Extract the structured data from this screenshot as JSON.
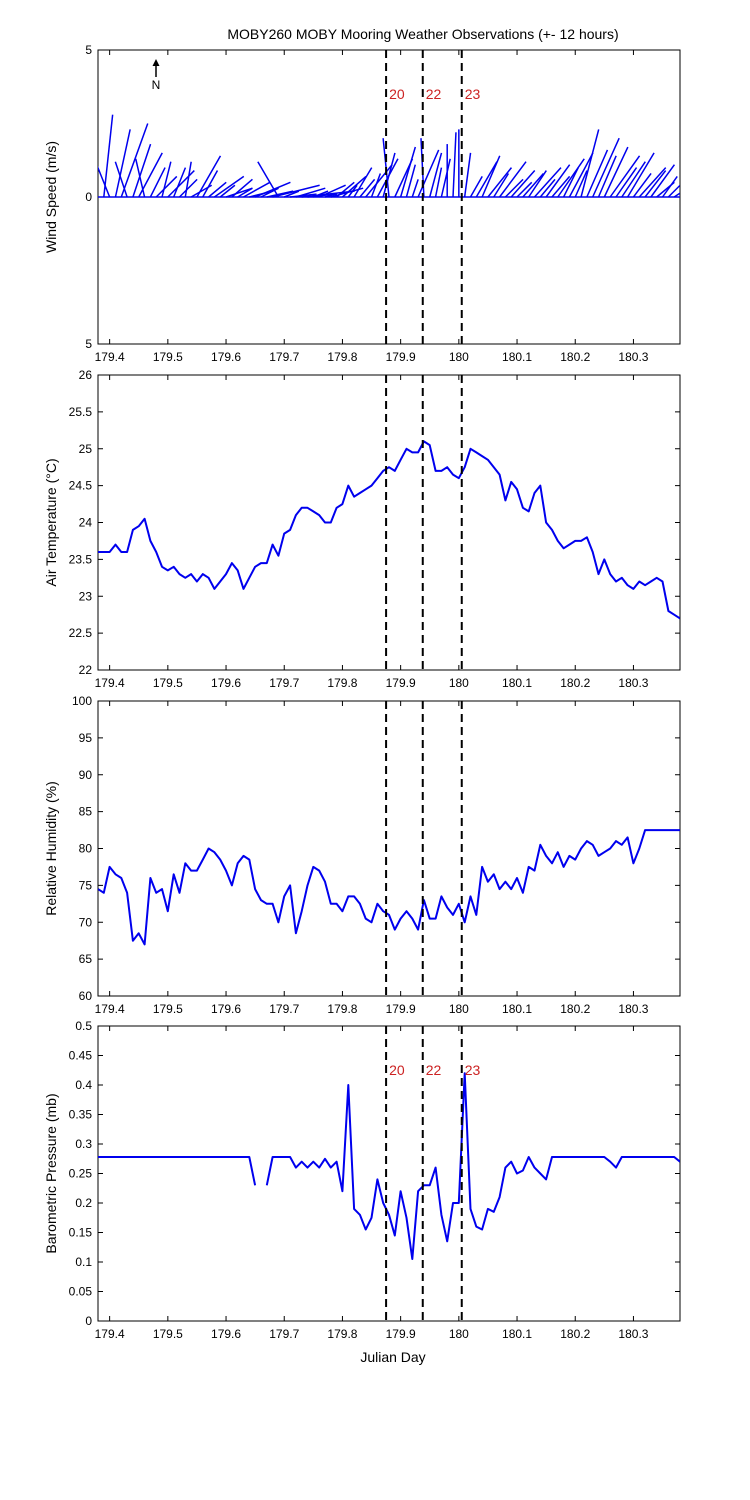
{
  "title": "MOBY260 MOBY Mooring Weather Observations (+- 12 hours)",
  "north_label": "N",
  "x_ticks": [
    179.4,
    179.5,
    179.6,
    179.7,
    179.8,
    179.9,
    180,
    180.1,
    180.2,
    180.3
  ],
  "x_range": [
    179.38,
    180.38
  ],
  "x_label": "Julian Day",
  "markers": [
    {
      "x": 179.875,
      "label": "20"
    },
    {
      "x": 179.938,
      "label": "22"
    },
    {
      "x": 180.005,
      "label": "23"
    }
  ],
  "colors": {
    "series": "#0000ee",
    "marker_label": "#cc2222"
  },
  "chart_data": [
    {
      "type": "vector",
      "ylabel": "Wind Speed (m/s)",
      "ylim": [
        -5,
        5
      ],
      "y_ticks": [
        5,
        0,
        5
      ],
      "show_marker_labels": true,
      "vectors": [
        [
          179.39,
          0.3,
          2.8
        ],
        [
          179.4,
          -0.6,
          1.5
        ],
        [
          179.41,
          0.5,
          2.3
        ],
        [
          179.42,
          0.9,
          2.5
        ],
        [
          179.43,
          -0.4,
          1.2
        ],
        [
          179.44,
          0.6,
          1.8
        ],
        [
          179.45,
          0.8,
          1.5
        ],
        [
          179.46,
          -0.3,
          1.3
        ],
        [
          179.47,
          0.5,
          1.0
        ],
        [
          179.48,
          0.7,
          0.7
        ],
        [
          179.49,
          0.3,
          1.2
        ],
        [
          179.5,
          0.9,
          0.9
        ],
        [
          179.51,
          0.4,
          1.0
        ],
        [
          179.52,
          0.6,
          0.6
        ],
        [
          179.53,
          0.2,
          1.2
        ],
        [
          179.54,
          0.7,
          0.4
        ],
        [
          179.55,
          0.8,
          1.4
        ],
        [
          179.56,
          0.5,
          0.9
        ],
        [
          179.57,
          0.6,
          0.5
        ],
        [
          179.58,
          1.0,
          0.7
        ],
        [
          179.59,
          0.5,
          0.4
        ],
        [
          179.6,
          0.9,
          0.3
        ],
        [
          179.61,
          0.7,
          0.6
        ],
        [
          179.62,
          0.5,
          0.3
        ],
        [
          179.63,
          0.9,
          0.5
        ],
        [
          179.64,
          0.8,
          0.2
        ],
        [
          179.65,
          1.2,
          0.5
        ],
        [
          179.66,
          0.6,
          0.3
        ],
        [
          179.67,
          0.9,
          0.2
        ],
        [
          179.68,
          1.6,
          0.4
        ],
        [
          179.69,
          -0.7,
          1.2
        ],
        [
          179.7,
          0.5,
          0.2
        ],
        [
          179.71,
          0.9,
          0.1
        ],
        [
          179.72,
          1.0,
          0.3
        ],
        [
          179.73,
          1.8,
          0.2
        ],
        [
          179.74,
          1.0,
          0.1
        ],
        [
          179.75,
          0.5,
          0.2
        ],
        [
          179.76,
          0.9,
          0.4
        ],
        [
          179.77,
          0.4,
          0.1
        ],
        [
          179.78,
          1.1,
          0.3
        ],
        [
          179.79,
          0.6,
          0.5
        ],
        [
          179.8,
          0.8,
          0.7
        ],
        [
          179.81,
          0.3,
          0.4
        ],
        [
          179.82,
          0.6,
          1.0
        ],
        [
          179.83,
          0.5,
          0.6
        ],
        [
          179.84,
          0.9,
          1.1
        ],
        [
          179.85,
          0.3,
          0.8
        ],
        [
          179.86,
          0.7,
          1.3
        ],
        [
          179.87,
          0.4,
          1.5
        ],
        [
          179.88,
          -0.2,
          2.0
        ],
        [
          179.89,
          0.6,
          1.3
        ],
        [
          179.9,
          0.5,
          1.7
        ],
        [
          179.91,
          0.3,
          1.1
        ],
        [
          179.92,
          0.2,
          0.6
        ],
        [
          179.93,
          0.7,
          1.6
        ],
        [
          179.94,
          -0.1,
          2.0
        ],
        [
          179.95,
          0.4,
          1.5
        ],
        [
          179.96,
          0.2,
          1.0
        ],
        [
          179.97,
          0.3,
          1.3
        ],
        [
          179.98,
          0.0,
          1.8
        ],
        [
          179.99,
          0.1,
          2.2
        ],
        [
          180.0,
          0.0,
          2.3
        ],
        [
          180.01,
          0.2,
          1.5
        ],
        [
          180.02,
          0.4,
          0.7
        ],
        [
          180.03,
          0.7,
          1.2
        ],
        [
          180.04,
          0.6,
          1.4
        ],
        [
          180.05,
          0.8,
          1.0
        ],
        [
          180.06,
          0.5,
          0.8
        ],
        [
          180.07,
          0.9,
          1.2
        ],
        [
          180.08,
          0.6,
          0.6
        ],
        [
          180.09,
          0.8,
          0.9
        ],
        [
          180.1,
          0.5,
          0.5
        ],
        [
          180.11,
          0.7,
          0.8
        ],
        [
          180.12,
          0.6,
          0.9
        ],
        [
          180.13,
          0.9,
          1.0
        ],
        [
          180.14,
          0.5,
          0.6
        ],
        [
          180.15,
          0.8,
          1.1
        ],
        [
          180.16,
          0.6,
          0.7
        ],
        [
          180.17,
          0.9,
          1.3
        ],
        [
          180.18,
          0.5,
          1.0
        ],
        [
          180.19,
          0.8,
          1.5
        ],
        [
          180.2,
          0.4,
          0.9
        ],
        [
          180.21,
          0.6,
          2.3
        ],
        [
          180.22,
          0.7,
          1.6
        ],
        [
          180.23,
          0.9,
          2.0
        ],
        [
          180.24,
          0.6,
          1.4
        ],
        [
          180.25,
          0.8,
          1.7
        ],
        [
          180.26,
          1.0,
          1.4
        ],
        [
          180.27,
          0.7,
          1.0
        ],
        [
          180.28,
          0.8,
          1.2
        ],
        [
          180.29,
          0.9,
          1.5
        ],
        [
          180.3,
          0.6,
          0.8
        ],
        [
          180.31,
          0.9,
          1.0
        ],
        [
          180.32,
          0.7,
          0.9
        ],
        [
          180.33,
          0.8,
          1.1
        ],
        [
          180.34,
          0.6,
          0.5
        ],
        [
          180.35,
          0.5,
          0.7
        ],
        [
          180.36,
          0.4,
          0.4
        ],
        [
          180.37,
          0.3,
          0.2
        ]
      ]
    },
    {
      "type": "line",
      "ylabel": "Air Temperature (°C)",
      "ylim": [
        22,
        26
      ],
      "y_ticks": [
        22,
        22.5,
        23,
        23.5,
        24,
        24.5,
        25,
        25.5,
        26
      ],
      "show_marker_labels": false,
      "x": [
        179.38,
        179.39,
        179.4,
        179.41,
        179.42,
        179.43,
        179.44,
        179.45,
        179.46,
        179.47,
        179.48,
        179.49,
        179.5,
        179.51,
        179.52,
        179.53,
        179.54,
        179.55,
        179.56,
        179.57,
        179.58,
        179.59,
        179.6,
        179.61,
        179.62,
        179.63,
        179.64,
        179.65,
        179.66,
        179.67,
        179.68,
        179.69,
        179.7,
        179.71,
        179.72,
        179.73,
        179.74,
        179.75,
        179.76,
        179.77,
        179.78,
        179.79,
        179.8,
        179.81,
        179.82,
        179.83,
        179.84,
        179.85,
        179.86,
        179.87,
        179.88,
        179.89,
        179.9,
        179.91,
        179.92,
        179.93,
        179.94,
        179.95,
        179.96,
        179.97,
        179.98,
        179.99,
        180.0,
        180.01,
        180.02,
        180.03,
        180.04,
        180.05,
        180.06,
        180.07,
        180.08,
        180.09,
        180.1,
        180.11,
        180.12,
        180.13,
        180.14,
        180.15,
        180.16,
        180.17,
        180.18,
        180.19,
        180.2,
        180.21,
        180.22,
        180.23,
        180.24,
        180.25,
        180.26,
        180.27,
        180.28,
        180.29,
        180.3,
        180.31,
        180.32,
        180.33,
        180.34,
        180.35,
        180.36,
        180.37,
        180.38
      ],
      "values": [
        23.6,
        23.6,
        23.6,
        23.7,
        23.6,
        23.6,
        23.9,
        23.95,
        24.05,
        23.75,
        23.6,
        23.4,
        23.35,
        23.4,
        23.3,
        23.25,
        23.3,
        23.2,
        23.3,
        23.25,
        23.1,
        23.2,
        23.3,
        23.45,
        23.35,
        23.1,
        23.25,
        23.4,
        23.45,
        23.45,
        23.7,
        23.55,
        23.85,
        23.9,
        24.1,
        24.2,
        24.2,
        24.15,
        24.1,
        24.0,
        24.0,
        24.2,
        24.25,
        24.5,
        24.35,
        24.4,
        24.45,
        24.5,
        24.6,
        24.7,
        24.75,
        24.7,
        24.85,
        25.0,
        24.95,
        24.95,
        25.1,
        25.05,
        24.7,
        24.7,
        24.75,
        24.65,
        24.6,
        24.75,
        25.0,
        24.95,
        24.9,
        24.85,
        24.75,
        24.65,
        24.3,
        24.55,
        24.45,
        24.2,
        24.15,
        24.4,
        24.5,
        24.0,
        23.9,
        23.75,
        23.65,
        23.7,
        23.75,
        23.75,
        23.8,
        23.6,
        23.3,
        23.5,
        23.3,
        23.2,
        23.25,
        23.15,
        23.1,
        23.2,
        23.15,
        23.2,
        23.25,
        23.2,
        22.8,
        22.75,
        22.7
      ]
    },
    {
      "type": "line",
      "ylabel": "Relative Humidity (%)",
      "ylim": [
        60,
        100
      ],
      "y_ticks": [
        60,
        65,
        70,
        75,
        80,
        85,
        90,
        95,
        100
      ],
      "show_marker_labels": false,
      "x": [
        179.38,
        179.39,
        179.4,
        179.41,
        179.42,
        179.43,
        179.44,
        179.45,
        179.46,
        179.47,
        179.48,
        179.49,
        179.5,
        179.51,
        179.52,
        179.53,
        179.54,
        179.55,
        179.56,
        179.57,
        179.58,
        179.59,
        179.6,
        179.61,
        179.62,
        179.63,
        179.64,
        179.65,
        179.66,
        179.67,
        179.68,
        179.69,
        179.7,
        179.71,
        179.72,
        179.73,
        179.74,
        179.75,
        179.76,
        179.77,
        179.78,
        179.79,
        179.8,
        179.81,
        179.82,
        179.83,
        179.84,
        179.85,
        179.86,
        179.87,
        179.88,
        179.89,
        179.9,
        179.91,
        179.92,
        179.93,
        179.94,
        179.95,
        179.96,
        179.97,
        179.98,
        179.99,
        180.0,
        180.01,
        180.02,
        180.03,
        180.04,
        180.05,
        180.06,
        180.07,
        180.08,
        180.09,
        180.1,
        180.11,
        180.12,
        180.13,
        180.14,
        180.15,
        180.16,
        180.17,
        180.18,
        180.19,
        180.2,
        180.21,
        180.22,
        180.23,
        180.24,
        180.25,
        180.26,
        180.27,
        180.28,
        180.29,
        180.3,
        180.31,
        180.32,
        180.33,
        180.34,
        180.35,
        180.36,
        180.37,
        180.38
      ],
      "values": [
        74.5,
        74,
        77.5,
        76.5,
        76,
        74,
        67.5,
        68.5,
        67,
        76,
        74,
        74.5,
        71.5,
        76.5,
        74,
        78,
        77,
        77,
        78.5,
        80,
        79.5,
        78.5,
        77,
        75,
        78,
        79,
        78.5,
        74.5,
        73,
        72.5,
        72.5,
        70,
        73.5,
        75,
        68.5,
        71.5,
        75,
        77.5,
        77,
        75.5,
        72.5,
        72.5,
        71.5,
        73.5,
        73.5,
        72.5,
        70.5,
        70,
        72.5,
        71.5,
        71,
        69,
        70.5,
        71.5,
        70.5,
        69,
        73,
        70.5,
        70.5,
        73.5,
        72,
        71,
        72.5,
        70,
        73.5,
        71,
        77.5,
        75.5,
        76.5,
        74.5,
        75.5,
        74.5,
        76,
        74,
        77.5,
        77,
        80.5,
        79,
        78,
        79.5,
        77.5,
        79,
        78.5,
        80,
        81,
        80.5,
        79,
        79.5,
        80,
        81,
        80.5,
        81.5,
        78,
        80,
        82.5,
        82.5,
        82.5,
        82.5,
        82.5,
        82.5,
        82.5
      ]
    },
    {
      "type": "line",
      "ylabel": "Barometric Pressure (mb)",
      "ylim": [
        0,
        0.5
      ],
      "y_ticks": [
        0,
        0.05,
        0.1,
        0.15,
        0.2,
        0.25,
        0.3,
        0.35,
        0.4,
        0.45,
        0.5
      ],
      "show_marker_labels": true,
      "segments": [
        {
          "x": [
            179.38,
            179.64,
            179.65
          ],
          "values": [
            0.278,
            0.278,
            0.23
          ]
        },
        {
          "x": [
            179.67,
            179.68,
            179.7,
            179.71,
            179.72,
            179.73,
            179.74,
            179.75,
            179.76,
            179.77,
            179.78,
            179.79,
            179.8,
            179.81,
            179.82,
            179.83,
            179.84,
            179.85,
            179.86,
            179.87,
            179.88,
            179.89,
            179.9,
            179.91,
            179.92,
            179.93,
            179.94,
            179.95,
            179.96,
            179.97,
            179.98,
            179.99,
            180.0,
            180.01,
            180.02,
            180.03,
            180.04,
            180.05,
            180.06,
            180.07,
            180.08,
            180.09,
            180.1,
            180.11,
            180.12,
            180.13,
            180.14,
            180.15,
            180.16,
            180.17,
            180.18,
            180.19,
            180.2,
            180.21,
            180.22,
            180.23,
            180.24,
            180.25,
            180.26,
            180.27,
            180.28,
            180.29,
            180.3,
            180.31,
            180.32,
            180.33,
            180.34,
            180.35,
            180.36,
            180.37,
            180.38
          ],
          "values": [
            0.23,
            0.278,
            0.278,
            0.278,
            0.26,
            0.27,
            0.26,
            0.27,
            0.26,
            0.275,
            0.26,
            0.27,
            0.22,
            0.4,
            0.19,
            0.18,
            0.155,
            0.175,
            0.24,
            0.2,
            0.18,
            0.145,
            0.22,
            0.175,
            0.105,
            0.22,
            0.23,
            0.23,
            0.26,
            0.18,
            0.135,
            0.2,
            0.2,
            0.42,
            0.19,
            0.16,
            0.155,
            0.19,
            0.185,
            0.21,
            0.26,
            0.27,
            0.25,
            0.255,
            0.278,
            0.26,
            0.25,
            0.24,
            0.278,
            0.278,
            0.278,
            0.278,
            0.278,
            0.278,
            0.278,
            0.278,
            0.278,
            0.278,
            0.27,
            0.26,
            0.278,
            0.278,
            0.278,
            0.278,
            0.278,
            0.278,
            0.278,
            0.278,
            0.278,
            0.278,
            0.27
          ]
        }
      ]
    }
  ]
}
